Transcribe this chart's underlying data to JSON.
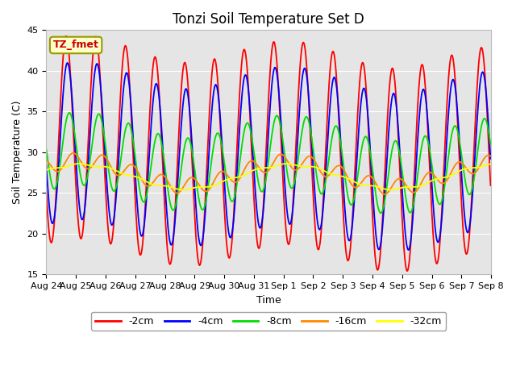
{
  "title": "Tonzi Soil Temperature Set D",
  "xlabel": "Time",
  "ylabel": "Soil Temperature (C)",
  "ylim": [
    15,
    45
  ],
  "num_days": 15,
  "samples_per_day": 48,
  "series": {
    "-2cm": {
      "color": "#ff0000",
      "amplitude": 12.5,
      "mean": 30.5,
      "phase_shift": 0.42,
      "depth_hours": 0.0,
      "attenuation": 1.0,
      "trend": -0.1
    },
    "-4cm": {
      "color": "#0000ff",
      "amplitude": 11.0,
      "mean": 30.0,
      "phase_shift": 0.42,
      "depth_hours": 1.0,
      "attenuation": 0.88,
      "trend": -0.08
    },
    "-8cm": {
      "color": "#00dd00",
      "amplitude": 7.5,
      "mean": 29.0,
      "phase_shift": 0.42,
      "depth_hours": 2.5,
      "attenuation": 0.6,
      "trend": -0.05
    },
    "-16cm": {
      "color": "#ff8800",
      "amplitude": 3.5,
      "mean": 27.5,
      "phase_shift": 0.42,
      "depth_hours": 5.5,
      "attenuation": 0.28,
      "trend": -0.02
    },
    "-32cm": {
      "color": "#ffff00",
      "amplitude": 1.2,
      "mean": 27.0,
      "phase_shift": 0.42,
      "depth_hours": 10.0,
      "attenuation": 0.1,
      "trend": 0.0
    }
  },
  "xtick_labels": [
    "Aug 24",
    "Aug 25",
    "Aug 26",
    "Aug 27",
    "Aug 28",
    "Aug 29",
    "Aug 30",
    "Aug 31",
    "Sep 1",
    "Sep 2",
    "Sep 3",
    "Sep 4",
    "Sep 5",
    "Sep 6",
    "Sep 7",
    "Sep 8"
  ],
  "background_color": "#e5e5e5",
  "figure_color": "#ffffff",
  "legend_label": "TZ_fmet",
  "legend_label_color": "#cc0000",
  "legend_box_facecolor": "#ffffcc",
  "legend_box_edgecolor": "#999900",
  "grid_color": "#ffffff",
  "title_fontsize": 12,
  "axis_label_fontsize": 9,
  "tick_fontsize": 8,
  "linewidth": 1.3
}
